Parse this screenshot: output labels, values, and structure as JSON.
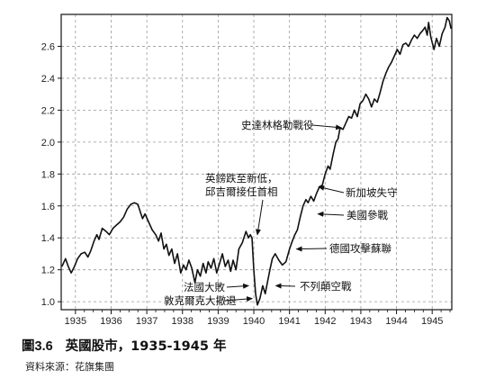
{
  "caption": {
    "figure_no": "圖3.6",
    "title": "英國股市，1935-1945 年"
  },
  "source": "資料來源：花旗集團",
  "chart_data": {
    "type": "line",
    "title": "",
    "xlabel": "",
    "ylabel": "",
    "xlim": [
      1934.6,
      1945.55
    ],
    "ylim": [
      0.95,
      2.8
    ],
    "grid": true,
    "x_ticks": [
      {
        "value": 1935,
        "label": "1935"
      },
      {
        "value": 1936,
        "label": "1936"
      },
      {
        "value": 1937,
        "label": "1937"
      },
      {
        "value": 1938,
        "label": "1938"
      },
      {
        "value": 1939,
        "label": "1939"
      },
      {
        "value": 1940,
        "label": "1940"
      },
      {
        "value": 1941,
        "label": "1941"
      },
      {
        "value": 1942,
        "label": "1942"
      },
      {
        "value": 1943,
        "label": "1943"
      },
      {
        "value": 1944,
        "label": "1944"
      },
      {
        "value": 1945,
        "label": "1945"
      }
    ],
    "y_ticks": [
      {
        "value": 1.0,
        "label": "1.0"
      },
      {
        "value": 1.2,
        "label": "1.2"
      },
      {
        "value": 1.4,
        "label": "1.4"
      },
      {
        "value": 1.6,
        "label": "1.6"
      },
      {
        "value": 1.8,
        "label": "1.8"
      },
      {
        "value": 2.0,
        "label": "2.0"
      },
      {
        "value": 2.2,
        "label": "2.2"
      },
      {
        "value": 2.4,
        "label": "2.4"
      },
      {
        "value": 2.6,
        "label": "2.6"
      }
    ],
    "series": [
      {
        "points": [
          [
            1934.62,
            1.22
          ],
          [
            1934.72,
            1.27
          ],
          [
            1934.8,
            1.22
          ],
          [
            1934.88,
            1.18
          ],
          [
            1934.97,
            1.22
          ],
          [
            1935.06,
            1.27
          ],
          [
            1935.16,
            1.3
          ],
          [
            1935.26,
            1.31
          ],
          [
            1935.35,
            1.28
          ],
          [
            1935.43,
            1.32
          ],
          [
            1935.52,
            1.38
          ],
          [
            1935.6,
            1.42
          ],
          [
            1935.66,
            1.39
          ],
          [
            1935.75,
            1.46
          ],
          [
            1935.86,
            1.44
          ],
          [
            1935.95,
            1.42
          ],
          [
            1936.05,
            1.46
          ],
          [
            1936.15,
            1.48
          ],
          [
            1936.25,
            1.5
          ],
          [
            1936.35,
            1.53
          ],
          [
            1936.45,
            1.58
          ],
          [
            1936.55,
            1.61
          ],
          [
            1936.65,
            1.62
          ],
          [
            1936.75,
            1.61
          ],
          [
            1936.82,
            1.56
          ],
          [
            1936.88,
            1.52
          ],
          [
            1936.95,
            1.55
          ],
          [
            1937.05,
            1.5
          ],
          [
            1937.15,
            1.45
          ],
          [
            1937.25,
            1.42
          ],
          [
            1937.33,
            1.38
          ],
          [
            1937.4,
            1.43
          ],
          [
            1937.48,
            1.33
          ],
          [
            1937.55,
            1.36
          ],
          [
            1937.62,
            1.29
          ],
          [
            1937.7,
            1.33
          ],
          [
            1937.78,
            1.24
          ],
          [
            1937.86,
            1.3
          ],
          [
            1937.95,
            1.18
          ],
          [
            1938.03,
            1.23
          ],
          [
            1938.1,
            1.2
          ],
          [
            1938.18,
            1.26
          ],
          [
            1938.26,
            1.21
          ],
          [
            1938.35,
            1.12
          ],
          [
            1938.42,
            1.2
          ],
          [
            1938.5,
            1.16
          ],
          [
            1938.58,
            1.24
          ],
          [
            1938.66,
            1.18
          ],
          [
            1938.72,
            1.25
          ],
          [
            1938.8,
            1.21
          ],
          [
            1938.88,
            1.27
          ],
          [
            1938.96,
            1.18
          ],
          [
            1939.04,
            1.24
          ],
          [
            1939.12,
            1.3
          ],
          [
            1939.2,
            1.22
          ],
          [
            1939.28,
            1.26
          ],
          [
            1939.35,
            1.19
          ],
          [
            1939.42,
            1.26
          ],
          [
            1939.5,
            1.2
          ],
          [
            1939.58,
            1.33
          ],
          [
            1939.68,
            1.37
          ],
          [
            1939.78,
            1.44
          ],
          [
            1939.85,
            1.4
          ],
          [
            1939.9,
            1.42
          ],
          [
            1939.95,
            1.4
          ],
          [
            1940.0,
            1.2
          ],
          [
            1940.05,
            1.05
          ],
          [
            1940.1,
            0.98
          ],
          [
            1940.17,
            1.02
          ],
          [
            1940.25,
            1.1
          ],
          [
            1940.32,
            1.05
          ],
          [
            1940.38,
            1.12
          ],
          [
            1940.45,
            1.2
          ],
          [
            1940.52,
            1.27
          ],
          [
            1940.6,
            1.3
          ],
          [
            1940.7,
            1.26
          ],
          [
            1940.8,
            1.23
          ],
          [
            1940.9,
            1.25
          ],
          [
            1941.0,
            1.33
          ],
          [
            1941.08,
            1.38
          ],
          [
            1941.15,
            1.42
          ],
          [
            1941.22,
            1.45
          ],
          [
            1941.3,
            1.53
          ],
          [
            1941.38,
            1.6
          ],
          [
            1941.46,
            1.64
          ],
          [
            1941.52,
            1.62
          ],
          [
            1941.6,
            1.66
          ],
          [
            1941.68,
            1.63
          ],
          [
            1941.76,
            1.68
          ],
          [
            1941.84,
            1.72
          ],
          [
            1941.92,
            1.73
          ],
          [
            1942.0,
            1.8
          ],
          [
            1942.08,
            1.85
          ],
          [
            1942.14,
            1.83
          ],
          [
            1942.22,
            1.92
          ],
          [
            1942.3,
            2.0
          ],
          [
            1942.36,
            2.02
          ],
          [
            1942.42,
            2.09
          ],
          [
            1942.5,
            2.08
          ],
          [
            1942.58,
            2.12
          ],
          [
            1942.66,
            2.16
          ],
          [
            1942.74,
            2.15
          ],
          [
            1942.82,
            2.2
          ],
          [
            1942.9,
            2.16
          ],
          [
            1942.98,
            2.24
          ],
          [
            1943.06,
            2.26
          ],
          [
            1943.14,
            2.3
          ],
          [
            1943.22,
            2.27
          ],
          [
            1943.3,
            2.22
          ],
          [
            1943.38,
            2.27
          ],
          [
            1943.46,
            2.25
          ],
          [
            1943.54,
            2.31
          ],
          [
            1943.62,
            2.38
          ],
          [
            1943.7,
            2.43
          ],
          [
            1943.78,
            2.47
          ],
          [
            1943.86,
            2.5
          ],
          [
            1943.94,
            2.54
          ],
          [
            1944.02,
            2.58
          ],
          [
            1944.1,
            2.55
          ],
          [
            1944.18,
            2.61
          ],
          [
            1944.26,
            2.62
          ],
          [
            1944.34,
            2.6
          ],
          [
            1944.42,
            2.64
          ],
          [
            1944.5,
            2.67
          ],
          [
            1944.58,
            2.65
          ],
          [
            1944.66,
            2.68
          ],
          [
            1944.74,
            2.7
          ],
          [
            1944.8,
            2.72
          ],
          [
            1944.86,
            2.67
          ],
          [
            1944.9,
            2.75
          ],
          [
            1944.96,
            2.66
          ],
          [
            1945.05,
            2.58
          ],
          [
            1945.12,
            2.65
          ],
          [
            1945.2,
            2.6
          ],
          [
            1945.28,
            2.68
          ],
          [
            1945.36,
            2.72
          ],
          [
            1945.42,
            2.78
          ],
          [
            1945.48,
            2.76
          ],
          [
            1945.53,
            2.71
          ]
        ]
      }
    ],
    "annotations": [
      {
        "lines": [
          "英鎊跌至新低，",
          "邱吉爾接任首相"
        ],
        "x": 1940.1,
        "y": 1.42,
        "arrow_from": [
          1939.75,
          1.52
        ]
      },
      {
        "lines": [
          "史達林格勒戰役"
        ],
        "x": 1942.45,
        "y": 2.09,
        "arrow_from": [
          1942.2,
          2.1
        ]
      },
      {
        "lines": [
          "新加坡失守"
        ],
        "x": 1941.82,
        "y": 1.72,
        "arrow_from": [
          1942.2,
          1.66
        ]
      },
      {
        "lines": [
          "美國參戰"
        ],
        "x": 1941.8,
        "y": 1.55,
        "arrow_from": [
          1942.2,
          1.55
        ]
      },
      {
        "lines": [
          "德國攻擊蘇聯"
        ],
        "x": 1941.2,
        "y": 1.33,
        "arrow_from": [
          1941.45,
          1.32
        ]
      },
      {
        "lines": [
          "不列顛空戰"
        ],
        "x": 1940.62,
        "y": 1.1,
        "arrow_from": [
          1940.95,
          1.09
        ]
      },
      {
        "lines": [
          "法國大敗"
        ],
        "x": 1939.85,
        "y": 1.1,
        "arrow_from": [
          1939.58,
          1.09
        ]
      },
      {
        "lines": [
          "敦克爾克大撤退"
        ],
        "x": 1939.95,
        "y": 1.02,
        "arrow_from": [
          1939.45,
          1.02
        ]
      }
    ]
  }
}
